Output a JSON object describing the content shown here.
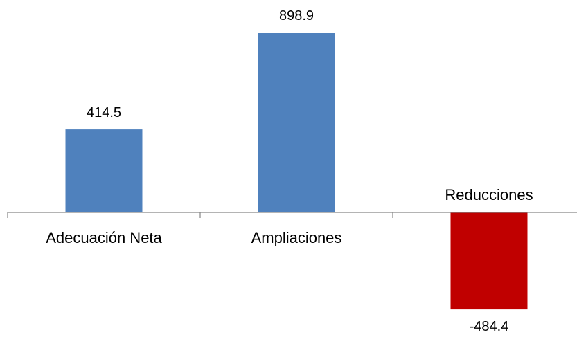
{
  "chart_data": {
    "type": "bar",
    "categories": [
      "Adecuación Neta",
      "Ampliaciones",
      "Reducciones"
    ],
    "values": [
      414.5,
      898.9,
      -484.4
    ],
    "data_labels": [
      "414.5",
      "898.9",
      "-484.4"
    ],
    "bar_colors": [
      "#4f81bd",
      "#4f81bd",
      "#c00000"
    ],
    "axis_color": "#868686",
    "title": "",
    "xlabel": "",
    "ylabel": "",
    "ylim": [
      -600,
      1000
    ],
    "grid": false,
    "legend": "none"
  }
}
